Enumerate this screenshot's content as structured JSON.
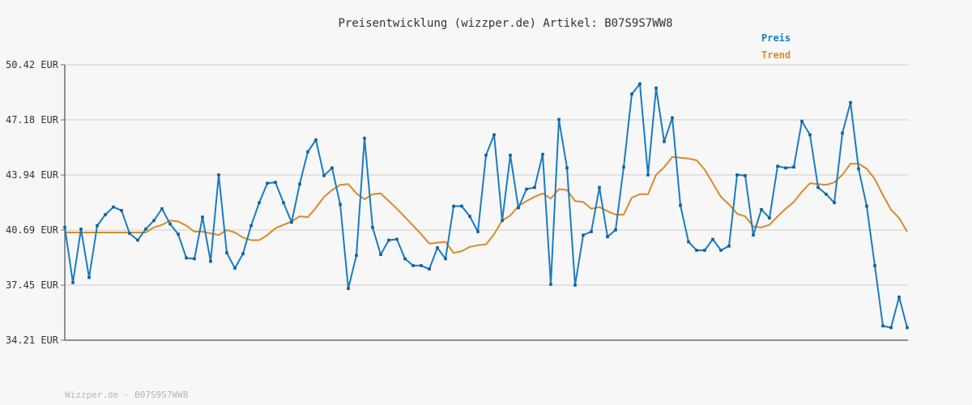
{
  "chart_data": {
    "type": "line",
    "title": "Preisentwicklung (wizzper.de) Artikel: B07S9S7WW8",
    "xlabel": "",
    "ylabel": "",
    "unit": "EUR",
    "yticks": [
      "34.21 EUR",
      "37.45 EUR",
      "40.69 EUR",
      "43.94 EUR",
      "47.18 EUR",
      "50.42 EUR"
    ],
    "ylim": [
      34.21,
      50.42
    ],
    "legend_position": "top-right",
    "grid": true,
    "series": [
      {
        "name": "Preis",
        "color": "#1a7cc0",
        "values": [
          40.85,
          37.6,
          40.75,
          37.9,
          40.95,
          41.6,
          42.05,
          41.85,
          40.5,
          40.1,
          40.75,
          41.25,
          41.95,
          41.05,
          40.45,
          39.05,
          39.0,
          41.45,
          38.85,
          43.94,
          39.35,
          38.45,
          39.3,
          40.95,
          42.3,
          43.45,
          43.5,
          42.3,
          41.15,
          43.4,
          45.3,
          46.0,
          43.9,
          44.35,
          42.2,
          37.25,
          39.2,
          46.1,
          40.85,
          39.25,
          40.1,
          40.15,
          39.0,
          38.6,
          38.6,
          38.4,
          39.65,
          39.0,
          42.1,
          42.1,
          41.5,
          40.6,
          45.1,
          46.3,
          41.25,
          45.1,
          42.0,
          43.1,
          43.2,
          45.15,
          37.5,
          47.2,
          44.35,
          37.45,
          40.4,
          40.6,
          43.2,
          40.3,
          40.7,
          44.4,
          48.7,
          49.3,
          43.94,
          49.05,
          45.9,
          47.3,
          42.15,
          40.0,
          39.5,
          39.5,
          40.15,
          39.5,
          39.75,
          43.94,
          43.9,
          40.4,
          41.9,
          41.4,
          44.45,
          44.35,
          44.4,
          47.1,
          46.3,
          43.2,
          42.8,
          42.3,
          46.4,
          48.2,
          44.3,
          42.1,
          38.6,
          35.05,
          34.95,
          36.75,
          34.95
        ]
      },
      {
        "name": "Trend",
        "color": "#d98a2a",
        "values": [
          40.55,
          40.55,
          40.55,
          40.55,
          40.55,
          40.55,
          40.55,
          40.55,
          40.55,
          40.55,
          40.55,
          40.85,
          41.0,
          41.25,
          41.2,
          40.95,
          40.6,
          40.6,
          40.5,
          40.4,
          40.7,
          40.55,
          40.25,
          40.1,
          40.1,
          40.4,
          40.8,
          41.0,
          41.2,
          41.5,
          41.45,
          42.0,
          42.65,
          43.05,
          43.35,
          43.4,
          42.85,
          42.5,
          42.8,
          42.85,
          42.4,
          41.95,
          41.45,
          40.95,
          40.45,
          39.9,
          39.95,
          40.0,
          39.35,
          39.45,
          39.7,
          39.8,
          39.85,
          40.45,
          41.25,
          41.55,
          42.1,
          42.4,
          42.65,
          42.85,
          42.55,
          43.1,
          43.05,
          42.4,
          42.35,
          41.95,
          42.05,
          41.8,
          41.6,
          41.6,
          42.6,
          42.8,
          42.8,
          43.94,
          44.4,
          45.0,
          44.95,
          44.9,
          44.8,
          44.25,
          43.45,
          42.65,
          42.2,
          41.65,
          41.5,
          40.9,
          40.85,
          41.0,
          41.5,
          41.95,
          42.35,
          42.95,
          43.45,
          43.4,
          43.35,
          43.5,
          43.95,
          44.6,
          44.6,
          44.3,
          43.7,
          42.75,
          41.9,
          41.4,
          40.6
        ]
      }
    ]
  },
  "footer_text": "Wizzper.de - B07S9S7WW8"
}
